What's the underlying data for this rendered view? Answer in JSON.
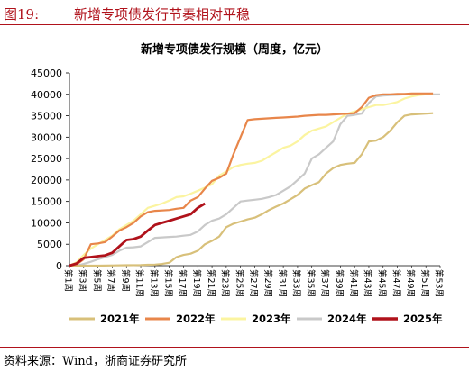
{
  "figure": {
    "number": "图19:",
    "title": "新增专项债发行节奏相对平稳",
    "source": "资料来源：Wind，浙商证券研究所"
  },
  "chart_data": {
    "type": "line",
    "title": "新增专项债发行规模（周度，亿元）",
    "xlabel": "",
    "ylabel": "",
    "ylim": [
      0,
      45000
    ],
    "yticks": [
      0,
      5000,
      10000,
      15000,
      20000,
      25000,
      30000,
      35000,
      40000,
      45000
    ],
    "categories": [
      "第1周",
      "第3周",
      "第5周",
      "第7周",
      "第9周",
      "第11周",
      "第13周",
      "第15周",
      "第17周",
      "第19周",
      "第21周",
      "第23周",
      "第25周",
      "第27周",
      "第29周",
      "第31周",
      "第33周",
      "第35周",
      "第37周",
      "第39周",
      "第41周",
      "第43周",
      "第45周",
      "第47周",
      "第49周",
      "第51周",
      "第53周"
    ],
    "grid": false,
    "legend_position": "bottom",
    "series": [
      {
        "name": "2021年",
        "color": "#d8c07a",
        "x": [
          1,
          5,
          9,
          11,
          12,
          13,
          14,
          15,
          16,
          17,
          18,
          19,
          20,
          21,
          22,
          23,
          24,
          25,
          26,
          27,
          28,
          29,
          30,
          31,
          32,
          33,
          34,
          35,
          36,
          37,
          38,
          39,
          40,
          41,
          42,
          43,
          44,
          45,
          46,
          47,
          48,
          49,
          50,
          51,
          52
        ],
        "y": [
          0,
          0,
          100,
          150,
          200,
          250,
          400,
          700,
          2000,
          2500,
          2800,
          3500,
          5000,
          5800,
          6800,
          9000,
          9800,
          10300,
          10800,
          11200,
          12000,
          13000,
          13800,
          14500,
          15500,
          16500,
          18000,
          18800,
          19500,
          21500,
          22800,
          23500,
          23800,
          24000,
          26000,
          29000,
          29200,
          30000,
          31500,
          33500,
          35000,
          35300,
          35400,
          35500,
          35600
        ]
      },
      {
        "name": "2022年",
        "color": "#e8864a",
        "x": [
          1,
          2,
          3,
          4,
          5,
          6,
          7,
          8,
          9,
          10,
          11,
          12,
          13,
          14,
          15,
          16,
          17,
          18,
          19,
          20,
          21,
          22,
          23,
          24,
          25,
          26,
          27,
          28,
          29,
          30,
          31,
          32,
          33,
          34,
          35,
          36,
          37,
          38,
          39,
          40,
          41,
          42,
          43,
          44,
          45,
          46,
          47,
          48,
          49,
          50,
          51,
          52
        ],
        "y": [
          0,
          300,
          1500,
          5000,
          5200,
          5500,
          6800,
          8200,
          9000,
          10000,
          11500,
          12500,
          12800,
          12900,
          13000,
          13300,
          13500,
          15200,
          16000,
          18000,
          19800,
          20500,
          21500,
          26000,
          30000,
          34000,
          34200,
          34300,
          34400,
          34500,
          34600,
          34700,
          34800,
          35000,
          35100,
          35200,
          35200,
          35300,
          35400,
          35500,
          35600,
          37000,
          39200,
          39800,
          40000,
          40000,
          40100,
          40100,
          40200,
          40200,
          40200,
          40200
        ]
      },
      {
        "name": "2023年",
        "color": "#fbf4a0",
        "x": [
          1,
          2,
          3,
          4,
          5,
          6,
          7,
          8,
          9,
          10,
          11,
          12,
          13,
          14,
          15,
          16,
          17,
          18,
          19,
          20,
          21,
          22,
          23,
          24,
          25,
          26,
          27,
          28,
          29,
          30,
          31,
          32,
          33,
          34,
          35,
          36,
          37,
          38,
          39,
          40,
          41,
          42,
          43,
          44,
          45,
          46,
          47,
          48,
          49,
          50,
          51,
          52
        ],
        "y": [
          0,
          800,
          2500,
          4000,
          5000,
          6000,
          7000,
          8500,
          9500,
          10500,
          12000,
          13500,
          14000,
          14500,
          15200,
          16000,
          16200,
          16800,
          17500,
          18200,
          19000,
          21000,
          22000,
          23000,
          23500,
          23800,
          24000,
          24500,
          25500,
          26500,
          27500,
          28000,
          29000,
          30500,
          31500,
          32000,
          32500,
          33500,
          34500,
          35500,
          36000,
          36500,
          37000,
          37500,
          37500,
          37800,
          38200,
          39000,
          39500,
          39800,
          40000,
          40000
        ]
      },
      {
        "name": "2024年",
        "color": "#c9c9c9",
        "x": [
          1,
          2,
          3,
          4,
          5,
          6,
          7,
          8,
          9,
          10,
          11,
          12,
          13,
          14,
          15,
          16,
          17,
          18,
          19,
          20,
          21,
          22,
          23,
          24,
          25,
          26,
          27,
          28,
          29,
          30,
          31,
          32,
          33,
          34,
          35,
          36,
          37,
          38,
          39,
          40,
          41,
          42,
          43,
          44,
          45,
          46,
          47,
          48,
          49,
          50,
          51,
          52,
          53
        ],
        "y": [
          0,
          0,
          400,
          900,
          1500,
          2000,
          2500,
          3500,
          4200,
          4300,
          4500,
          5500,
          6500,
          6600,
          6700,
          6800,
          7000,
          7200,
          8000,
          9500,
          10500,
          11000,
          12000,
          13500,
          15000,
          15200,
          15400,
          15600,
          16000,
          16500,
          17500,
          18500,
          20000,
          21500,
          25000,
          26000,
          27500,
          29000,
          33000,
          35000,
          35200,
          35500,
          38000,
          39500,
          39700,
          39800,
          39900,
          40000,
          40000,
          40000,
          40000,
          40000,
          40000
        ]
      },
      {
        "name": "2025年",
        "color": "#b0121b",
        "x": [
          1,
          2,
          3,
          4,
          5,
          6,
          7,
          8,
          9,
          10,
          11,
          12,
          13,
          14,
          15,
          16,
          17,
          18,
          19,
          20
        ],
        "y": [
          0,
          500,
          1800,
          2000,
          2200,
          2400,
          3000,
          4500,
          6000,
          6200,
          6800,
          8200,
          9500,
          10000,
          10500,
          11000,
          11500,
          12000,
          13500,
          14500
        ]
      }
    ]
  }
}
